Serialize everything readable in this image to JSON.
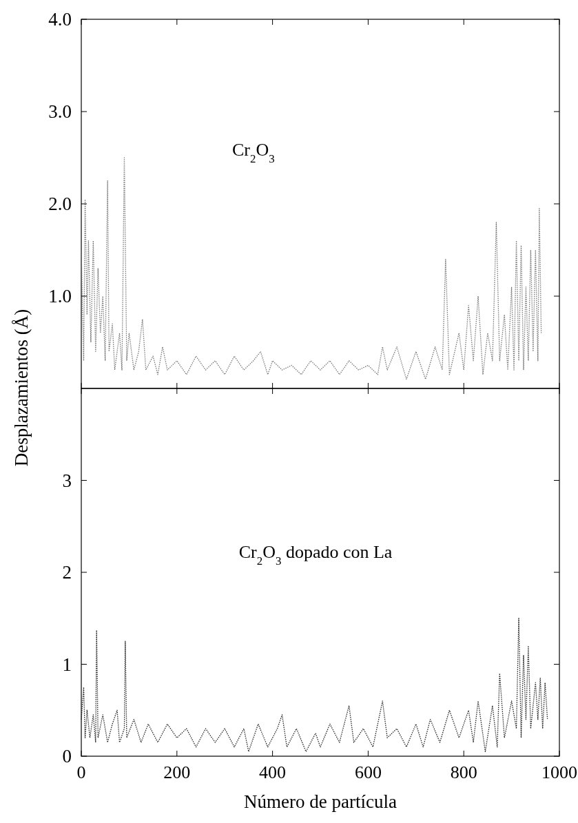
{
  "chart_data": [
    {
      "type": "line",
      "ylabel": "Desplazamientos (Å)",
      "annotations": [
        "Cr$_{2}$O$_{3}$"
      ],
      "xlim": [
        0,
        1000
      ],
      "ylim": [
        0,
        4
      ],
      "xticks": [
        0,
        200,
        400,
        600,
        800,
        1000
      ],
      "yticks": [
        {
          "value": 1,
          "label": "1.0"
        },
        {
          "value": 2,
          "label": "2.0"
        },
        {
          "value": 3,
          "label": "3.0"
        },
        {
          "value": 4,
          "label": "4.0"
        }
      ],
      "tick_labels": "y",
      "line_style": "dotted",
      "series": [
        {
          "color": "#777777",
          "x": [
            0,
            5,
            8,
            12,
            15,
            20,
            25,
            30,
            35,
            40,
            45,
            50,
            55,
            58,
            65,
            70,
            80,
            85,
            90,
            95,
            100,
            110,
            120,
            128,
            135,
            150,
            160,
            170,
            180,
            200,
            220,
            240,
            260,
            280,
            300,
            320,
            340,
            360,
            375,
            390,
            400,
            420,
            440,
            460,
            480,
            500,
            520,
            540,
            560,
            580,
            600,
            620,
            630,
            640,
            660,
            680,
            700,
            720,
            740,
            755,
            762,
            770,
            790,
            800,
            810,
            820,
            830,
            840,
            850,
            860,
            868,
            875,
            885,
            892,
            900,
            905,
            910,
            915,
            920,
            925,
            930,
            935,
            940,
            945,
            950,
            955,
            958,
            962
          ],
          "values": [
            1.5,
            0.3,
            2.05,
            0.8,
            1.6,
            0.5,
            1.6,
            0.4,
            1.3,
            0.6,
            1.0,
            0.3,
            2.25,
            0.4,
            0.7,
            0.2,
            0.6,
            0.2,
            2.5,
            0.3,
            0.6,
            0.2,
            0.4,
            0.75,
            0.2,
            0.35,
            0.15,
            0.45,
            0.2,
            0.3,
            0.15,
            0.35,
            0.2,
            0.3,
            0.15,
            0.35,
            0.2,
            0.3,
            0.4,
            0.15,
            0.3,
            0.2,
            0.25,
            0.15,
            0.3,
            0.2,
            0.3,
            0.15,
            0.3,
            0.2,
            0.25,
            0.15,
            0.45,
            0.2,
            0.45,
            0.1,
            0.4,
            0.1,
            0.45,
            0.2,
            1.4,
            0.15,
            0.6,
            0.2,
            0.9,
            0.3,
            1.0,
            0.15,
            0.6,
            0.3,
            1.8,
            0.3,
            0.8,
            0.2,
            1.1,
            0.2,
            1.6,
            0.3,
            1.55,
            0.2,
            1.1,
            0.3,
            1.5,
            0.4,
            1.5,
            0.3,
            1.95,
            0.6
          ]
        }
      ]
    },
    {
      "type": "line",
      "xlabel": "Número de partícula",
      "annotations": [
        "Cr$_{2}$O$_{3}$ dopado con La"
      ],
      "xlim": [
        0,
        1000
      ],
      "ylim": [
        0,
        4
      ],
      "xticks": [
        0,
        200,
        400,
        600,
        800,
        1000
      ],
      "yticks": [
        0,
        1,
        2,
        3
      ],
      "line_style": "dotted",
      "series": [
        {
          "color": "#222222",
          "x": [
            0,
            5,
            8,
            12,
            18,
            25,
            30,
            32,
            35,
            45,
            55,
            65,
            75,
            80,
            90,
            92,
            95,
            110,
            125,
            140,
            160,
            180,
            200,
            220,
            240,
            260,
            280,
            300,
            320,
            340,
            350,
            370,
            390,
            410,
            420,
            430,
            450,
            470,
            490,
            500,
            520,
            540,
            560,
            570,
            590,
            610,
            630,
            640,
            660,
            680,
            700,
            715,
            730,
            750,
            770,
            790,
            810,
            820,
            830,
            845,
            860,
            870,
            875,
            885,
            900,
            910,
            915,
            920,
            925,
            930,
            935,
            940,
            950,
            955,
            960,
            965,
            970,
            975
          ],
          "values": [
            0.4,
            0.75,
            0.2,
            0.5,
            0.2,
            0.45,
            0.15,
            1.37,
            0.2,
            0.45,
            0.15,
            0.35,
            0.5,
            0.15,
            0.3,
            1.25,
            0.2,
            0.4,
            0.15,
            0.35,
            0.15,
            0.35,
            0.2,
            0.3,
            0.1,
            0.3,
            0.15,
            0.3,
            0.1,
            0.3,
            0.05,
            0.35,
            0.1,
            0.3,
            0.45,
            0.1,
            0.3,
            0.05,
            0.25,
            0.1,
            0.35,
            0.15,
            0.55,
            0.15,
            0.3,
            0.1,
            0.6,
            0.2,
            0.3,
            0.1,
            0.35,
            0.1,
            0.4,
            0.15,
            0.5,
            0.2,
            0.5,
            0.15,
            0.6,
            0.05,
            0.55,
            0.1,
            0.9,
            0.2,
            0.6,
            0.3,
            1.5,
            0.2,
            1.1,
            0.4,
            1.2,
            0.3,
            0.8,
            0.4,
            0.85,
            0.3,
            0.8,
            0.4
          ]
        }
      ]
    }
  ]
}
